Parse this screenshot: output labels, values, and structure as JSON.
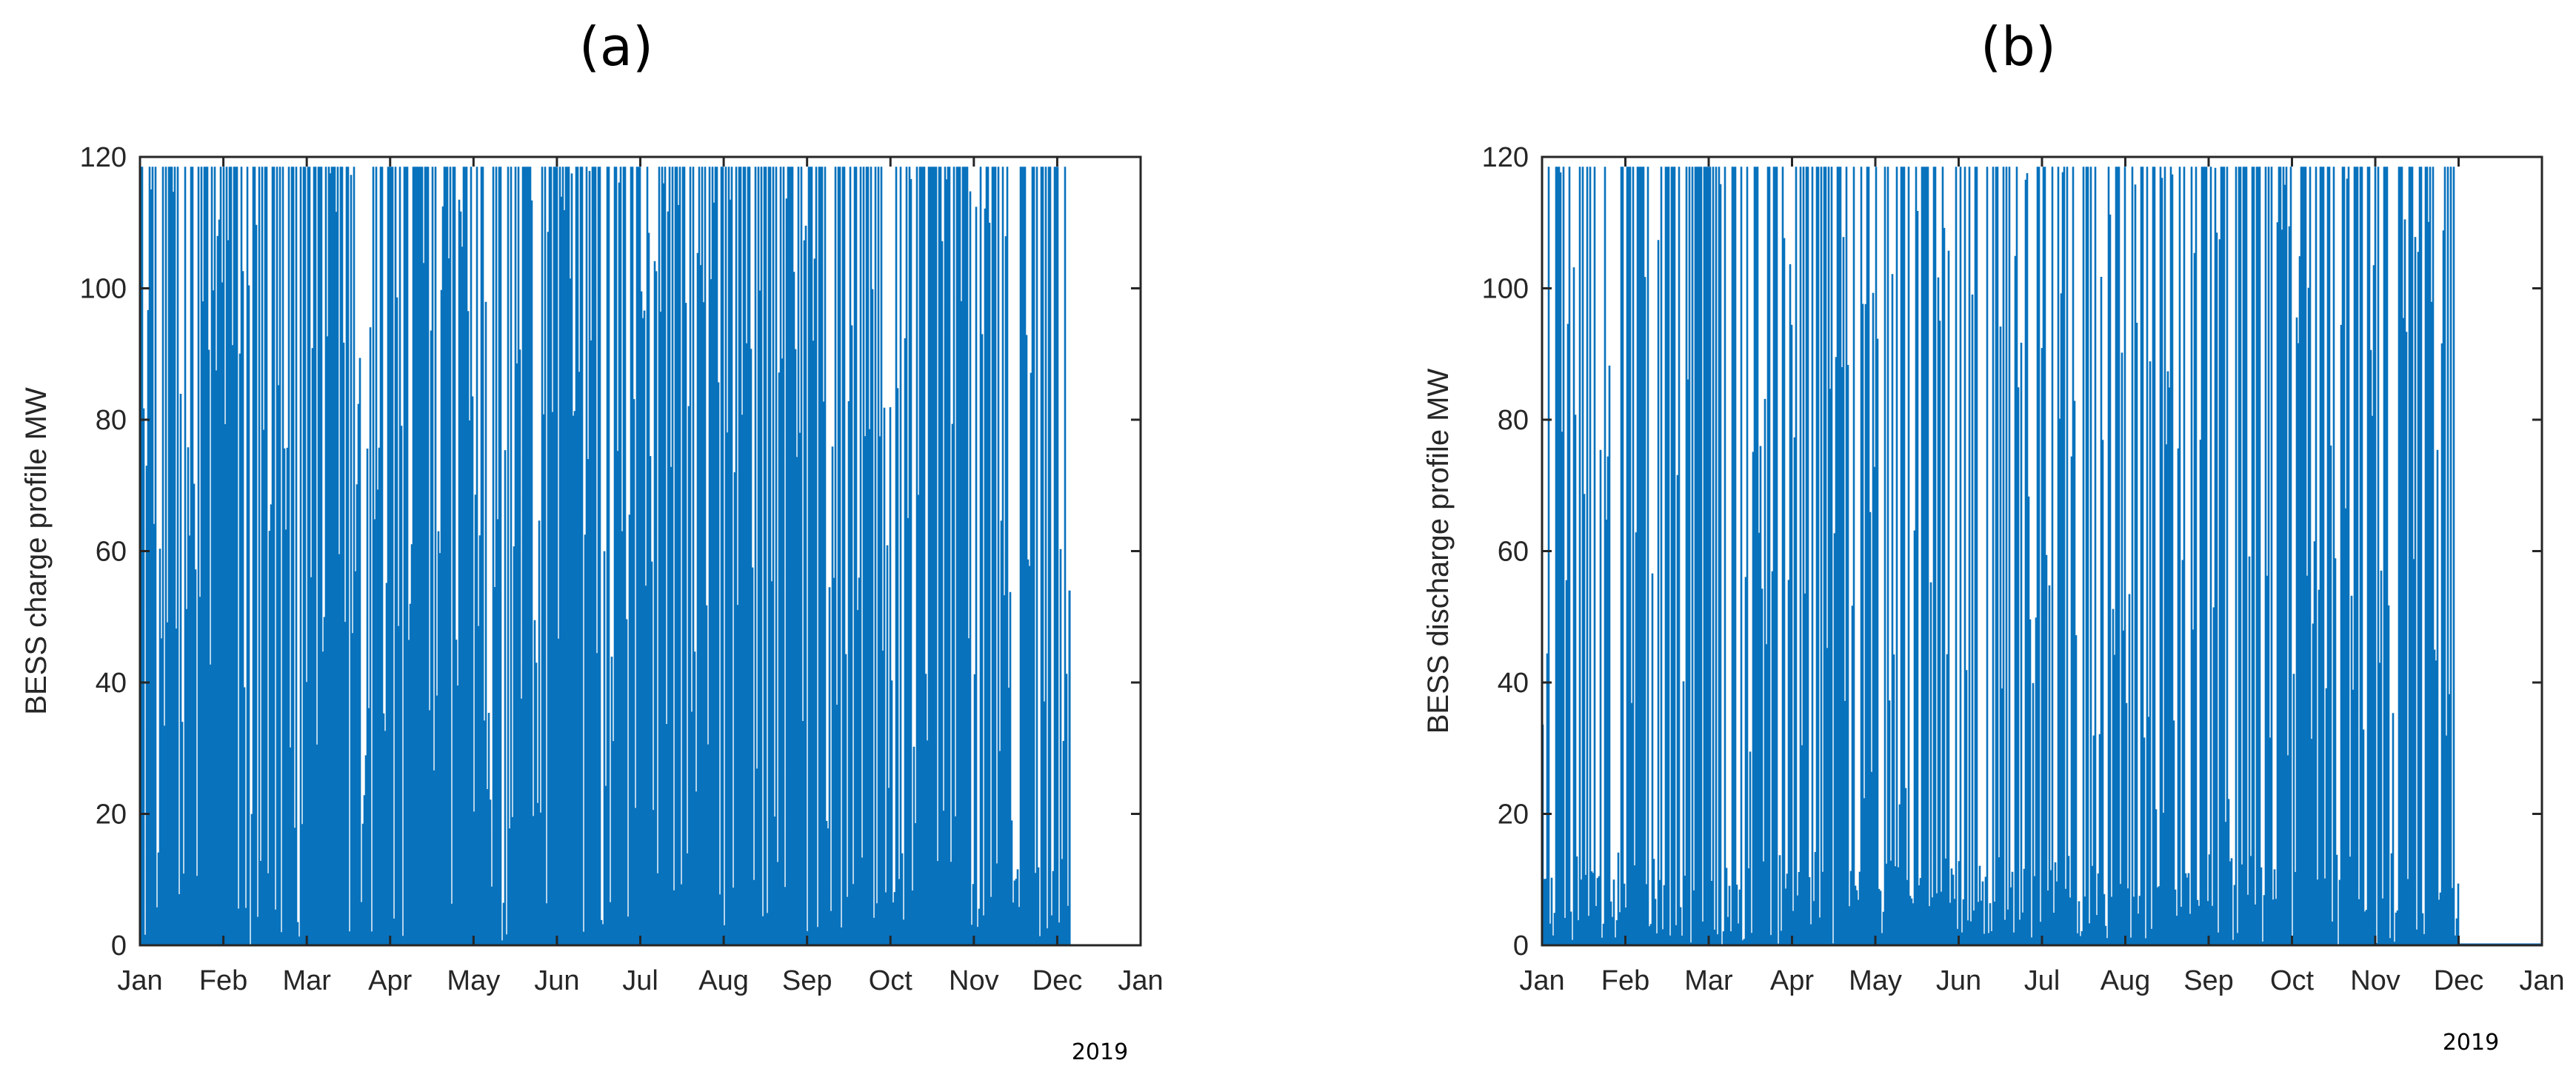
{
  "chart_data": [
    {
      "type": "bar",
      "panel_label": "(a)",
      "ylabel": "BESS charge profile MW",
      "xlabel": "",
      "year_label": "2019",
      "color": "#0872BD",
      "ylim": [
        0,
        120
      ],
      "yticks": [
        "0",
        "20",
        "40",
        "60",
        "80",
        "100",
        "120"
      ],
      "xticks": [
        "Jan",
        "Feb",
        "Mar",
        "Apr",
        "May",
        "Jun",
        "Jul",
        "Aug",
        "Sep",
        "Oct",
        "Nov",
        "Dec",
        "Jan"
      ],
      "x_range_months": [
        0,
        12
      ],
      "data_end_month": 11.13,
      "max_value": 118.5,
      "monthly_density": [
        0.9,
        0.82,
        0.9,
        0.9,
        0.95,
        0.93,
        0.88,
        0.86,
        0.8,
        0.82,
        0.7,
        0.55
      ],
      "series_description": "hourly charging power (MW) for 2019, dense blue area saturating near 118.5 MW"
    },
    {
      "type": "bar",
      "panel_label": "(b)",
      "ylabel": "BESS discharge profile MW",
      "xlabel": "",
      "year_label": "2019",
      "color": "#0872BD",
      "ylim": [
        0,
        120
      ],
      "yticks": [
        "0",
        "20",
        "40",
        "60",
        "80",
        "100",
        "120"
      ],
      "xticks": [
        "Jan",
        "Feb",
        "Mar",
        "Apr",
        "May",
        "Jun",
        "Jul",
        "Aug",
        "Sep",
        "Oct",
        "Nov",
        "Dec",
        "Jan"
      ],
      "x_range_months": [
        0,
        12
      ],
      "data_end_month": 11.0,
      "max_value": 118.5,
      "monthly_density": [
        0.55,
        0.6,
        0.55,
        0.7,
        0.6,
        0.45,
        0.7,
        0.65,
        0.7,
        0.75,
        0.7,
        0.0
      ],
      "series_description": "hourly discharging power (MW) for 2019, spiky blue bars reaching 118.5 MW, zero after early December"
    }
  ]
}
